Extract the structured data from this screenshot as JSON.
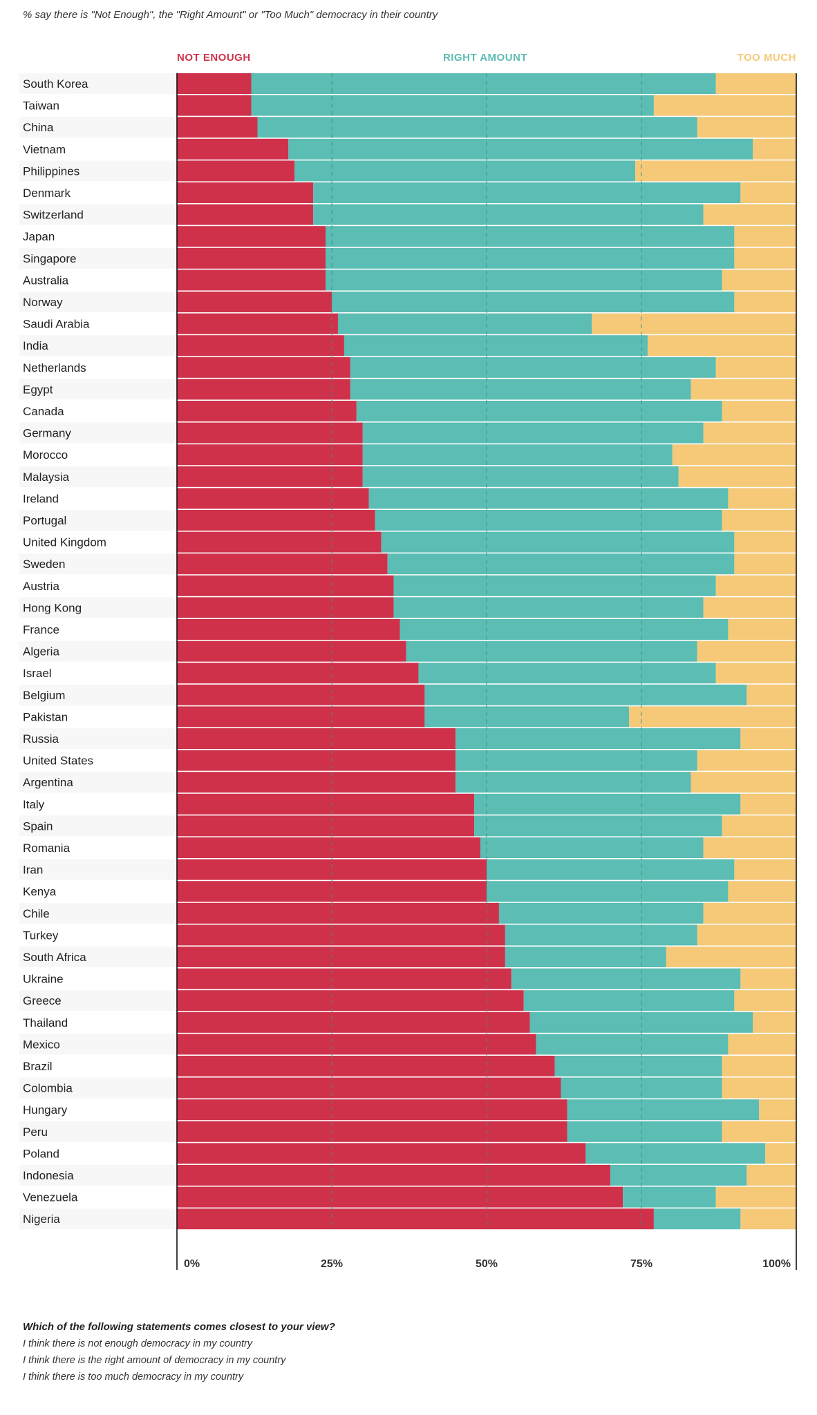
{
  "subtitle": "% say there is \"Not Enough\", the \"Right Amount\" or \"Too Much\" democracy in their country",
  "question": {
    "prompt": "Which of the following statements comes closest to your view?",
    "options": [
      "I think there is not enough democracy in my country",
      "I think there is the right amount of democracy in my country",
      "I think there is too much democracy in my country"
    ]
  },
  "colors": {
    "not_enough": "#cf314b",
    "right_amount": "#5bbdb3",
    "too_much": "#f5c978",
    "row_band": "#f7f7f7",
    "gridline": "#3f8f85"
  },
  "chart_data": {
    "type": "bar",
    "orientation": "horizontal",
    "stacked": true,
    "legend_position": "top",
    "series": [
      {
        "name": "NOT ENOUGH",
        "color_key": "not_enough"
      },
      {
        "name": "RIGHT AMOUNT",
        "color_key": "right_amount"
      },
      {
        "name": "TOO MUCH",
        "color_key": "too_much"
      }
    ],
    "xlim": [
      0,
      100
    ],
    "x_ticks": [
      0,
      25,
      50,
      75,
      100
    ],
    "x_tick_labels": [
      "0%",
      "25%",
      "50%",
      "75%",
      "100%"
    ],
    "gridlines_at": [
      25,
      50,
      75
    ],
    "categories": [
      "South Korea",
      "Taiwan",
      "China",
      "Vietnam",
      "Philippines",
      "Denmark",
      "Switzerland",
      "Japan",
      "Singapore",
      "Australia",
      "Norway",
      "Saudi Arabia",
      "India",
      "Netherlands",
      "Egypt",
      "Canada",
      "Germany",
      "Morocco",
      "Malaysia",
      "Ireland",
      "Portugal",
      "United Kingdom",
      "Sweden",
      "Austria",
      "Hong Kong",
      "France",
      "Algeria",
      "Israel",
      "Belgium",
      "Pakistan",
      "Russia",
      "United States",
      "Argentina",
      "Italy",
      "Spain",
      "Romania",
      "Iran",
      "Kenya",
      "Chile",
      "Turkey",
      "South Africa",
      "Ukraine",
      "Greece",
      "Thailand",
      "Mexico",
      "Brazil",
      "Colombia",
      "Hungary",
      "Peru",
      "Poland",
      "Indonesia",
      "Venezuela",
      "Nigeria"
    ],
    "not_enough": [
      12,
      12,
      13,
      18,
      19,
      22,
      22,
      24,
      24,
      24,
      25,
      26,
      27,
      28,
      28,
      29,
      30,
      30,
      30,
      31,
      32,
      33,
      34,
      35,
      35,
      36,
      37,
      39,
      40,
      40,
      45,
      45,
      45,
      48,
      48,
      49,
      50,
      50,
      52,
      53,
      53,
      54,
      56,
      57,
      58,
      61,
      62,
      63,
      63,
      66,
      70,
      72,
      77
    ],
    "right_amount": [
      75,
      65,
      71,
      75,
      55,
      69,
      63,
      66,
      66,
      64,
      65,
      41,
      49,
      59,
      55,
      59,
      55,
      50,
      51,
      58,
      56,
      57,
      56,
      52,
      50,
      53,
      47,
      48,
      52,
      33,
      46,
      39,
      38,
      43,
      40,
      36,
      40,
      39,
      33,
      31,
      26,
      37,
      34,
      36,
      31,
      27,
      26,
      31,
      25,
      29,
      22,
      15,
      14
    ],
    "too_much": [
      13,
      23,
      16,
      7,
      26,
      9,
      15,
      10,
      10,
      12,
      10,
      33,
      24,
      13,
      17,
      12,
      15,
      20,
      19,
      11,
      12,
      10,
      10,
      13,
      15,
      11,
      16,
      13,
      8,
      27,
      9,
      16,
      17,
      9,
      12,
      15,
      10,
      11,
      15,
      16,
      21,
      9,
      10,
      7,
      11,
      12,
      12,
      6,
      12,
      5,
      8,
      13,
      9
    ]
  }
}
